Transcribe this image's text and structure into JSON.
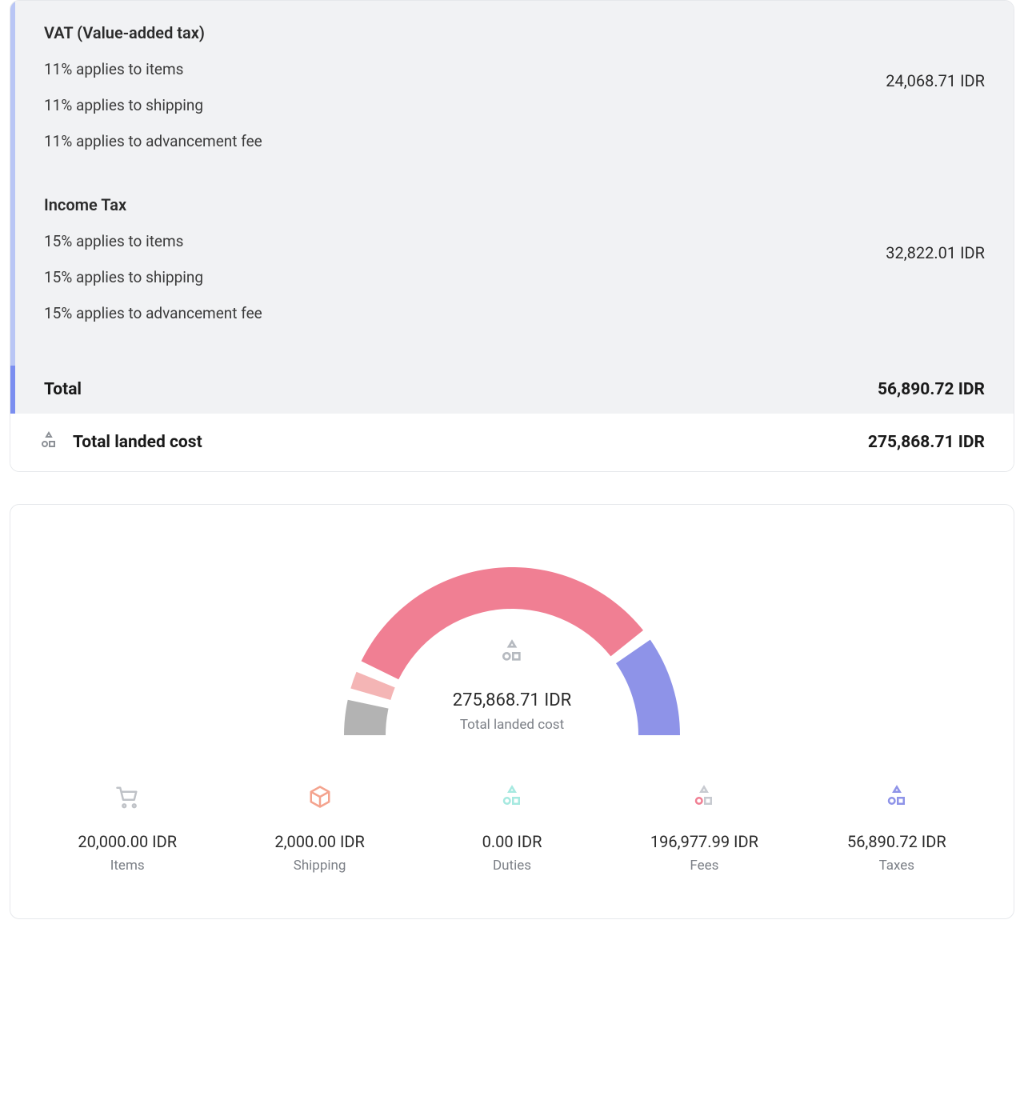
{
  "currency": "IDR",
  "taxes": {
    "sections": [
      {
        "title": "VAT (Value-added tax)",
        "lines": [
          "11% applies to items",
          "11% applies to shipping",
          "11% applies to advancement fee"
        ],
        "amount": "24,068.71 IDR"
      },
      {
        "title": "Income Tax",
        "lines": [
          "15% applies to items",
          "15% applies to shipping",
          "15% applies to advancement fee"
        ],
        "amount": "32,822.01 IDR"
      }
    ],
    "total_label": "Total",
    "total_amount": "56,890.72 IDR",
    "panel_bg": "#f1f2f4",
    "accent_border": "#b9c6f5",
    "accent_border_total": "#7b8ef0"
  },
  "landed": {
    "label": "Total landed cost",
    "amount": "275,868.71 IDR"
  },
  "chart": {
    "type": "gauge-donut-half",
    "total_amount": "275,868.71 IDR",
    "total_label": "Total landed cost",
    "radius_outer": 210,
    "radius_inner": 158,
    "gap_deg": 4,
    "background_color": "#ffffff",
    "segments": [
      {
        "key": "items",
        "label": "Items",
        "amount": "20,000.00 IDR",
        "value": 20000.0,
        "color": "#b3b3b3",
        "icon_color": "#bfc2c7"
      },
      {
        "key": "shipping",
        "label": "Shipping",
        "amount": "2,000.00 IDR",
        "value": 2000.0,
        "color": "#f4b5b5",
        "icon_color": "#f4a38e"
      },
      {
        "key": "duties",
        "label": "Duties",
        "amount": "0.00 IDR",
        "value": 0.0,
        "color": "#9fe8df",
        "icon_color": "#a6e9e0"
      },
      {
        "key": "fees",
        "label": "Fees",
        "amount": "196,977.99 IDR",
        "value": 196977.99,
        "color": "#f07f93",
        "icon_color": "#f07f93"
      },
      {
        "key": "taxes",
        "label": "Taxes",
        "amount": "56,890.72 IDR",
        "value": 56890.72,
        "color": "#8e93e8",
        "icon_color": "#8e93e8"
      }
    ]
  },
  "colors": {
    "text_primary": "#2b2b2b",
    "text_secondary": "#7b7f86",
    "card_border": "#e6e8eb"
  }
}
